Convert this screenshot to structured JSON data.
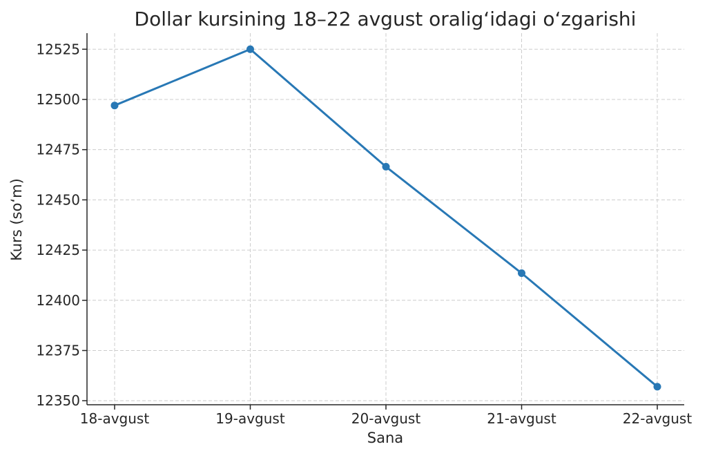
{
  "chart_data": {
    "type": "line",
    "title": "Dollar kursining 18–22 avgust oralig‘idagi o‘zgarishi",
    "xlabel": "Sana",
    "ylabel": "Kurs (so‘m)",
    "categories": [
      "18-avgust",
      "19-avgust",
      "20-avgust",
      "21-avgust",
      "22-avgust"
    ],
    "series": [
      {
        "values": [
          12497,
          12525,
          12466.5,
          12413.5,
          12357
        ]
      }
    ],
    "ylim": [
      12348,
      12533
    ],
    "yticks": [
      12350,
      12375,
      12400,
      12425,
      12450,
      12475,
      12500,
      12525
    ],
    "grid": true,
    "line_color": "#2878b5",
    "marker": "circle"
  }
}
